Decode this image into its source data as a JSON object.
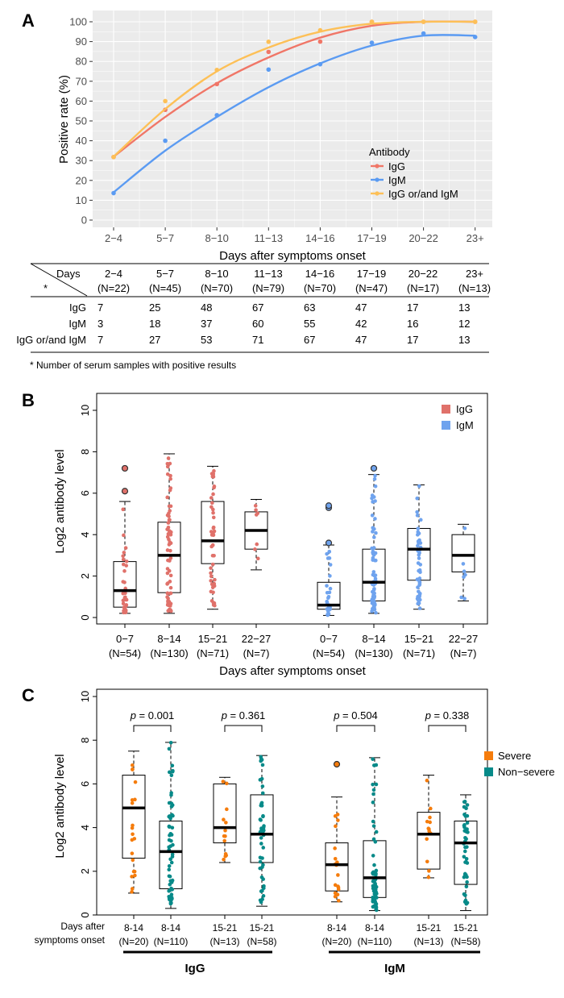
{
  "panel_a": {
    "letter": "A",
    "chart_data": {
      "type": "line",
      "xlabel": "Days after symptoms onset",
      "ylabel": "Positive rate (%)",
      "categories": [
        "2−4",
        "5−7",
        "8−10",
        "11−13",
        "14−16",
        "17−19",
        "20−22",
        "23+"
      ],
      "ylim": [
        0,
        100
      ],
      "yticks": [
        0,
        10,
        20,
        30,
        40,
        50,
        60,
        70,
        80,
        90,
        100
      ],
      "grid": true,
      "legend": {
        "title": "Antibody",
        "position": "inside-bottom-right"
      },
      "series": [
        {
          "name": "IgG",
          "color": "#F07667",
          "points": [
            31.8,
            55.6,
            68.6,
            84.8,
            90.0,
            100,
            100,
            100
          ],
          "fit": [
            32,
            52,
            69,
            82,
            92,
            98,
            100,
            100
          ]
        },
        {
          "name": "IgM",
          "color": "#5B9BF2",
          "points": [
            13.6,
            40.0,
            52.9,
            75.9,
            78.6,
            89.4,
            94.1,
            92.3
          ],
          "fit": [
            14,
            35,
            52,
            67,
            79,
            88,
            93,
            93
          ]
        },
        {
          "name": "IgG or/and IgM",
          "color": "#FDC057",
          "points": [
            31.8,
            60.0,
            75.7,
            89.9,
            95.7,
            100,
            100,
            100
          ],
          "fit": [
            32,
            56,
            75,
            87,
            95,
            99,
            100,
            100
          ]
        }
      ]
    },
    "table": {
      "corner_top": "Days",
      "corner_bottom": "*",
      "columns": [
        {
          "days": "2−4",
          "n": "(N=22)"
        },
        {
          "days": "5−7",
          "n": "(N=45)"
        },
        {
          "days": "8−10",
          "n": "(N=70)"
        },
        {
          "days": "11−13",
          "n": "(N=79)"
        },
        {
          "days": "14−16",
          "n": "(N=70)"
        },
        {
          "days": "17−19",
          "n": "(N=47)"
        },
        {
          "days": "20−22",
          "n": "(N=17)"
        },
        {
          "days": "23+",
          "n": "(N=13)"
        }
      ],
      "rows": [
        {
          "label": "IgG",
          "values": [
            "7",
            "25",
            "48",
            "67",
            "63",
            "47",
            "17",
            "13"
          ]
        },
        {
          "label": "IgM",
          "values": [
            "3",
            "18",
            "37",
            "60",
            "55",
            "42",
            "16",
            "12"
          ]
        },
        {
          "label": "IgG or/and IgM",
          "values": [
            "7",
            "27",
            "53",
            "71",
            "67",
            "47",
            "17",
            "13"
          ]
        }
      ],
      "footnote": "* Number of serum samples with positive results"
    }
  },
  "panel_b": {
    "letter": "B",
    "chart_data": {
      "type": "box",
      "ylabel": "Log2 antibody level",
      "xlabel": "Days after symptoms onset",
      "ylim": [
        0,
        10
      ],
      "yticks": [
        0,
        2,
        4,
        6,
        8,
        10
      ],
      "legend": [
        {
          "name": "IgG",
          "color": "#E0716A"
        },
        {
          "name": "IgM",
          "color": "#6FA3EE"
        }
      ],
      "groups": [
        {
          "label": "0−7",
          "n": "(N=54)",
          "series": "IgG",
          "q1": 0.5,
          "median": 1.3,
          "q3": 2.7,
          "min": 0.2,
          "max": 5.6,
          "outliers": [
            6.1,
            7.2
          ]
        },
        {
          "label": "8−14",
          "n": "(N=130)",
          "series": "IgG",
          "q1": 1.2,
          "median": 3.0,
          "q3": 4.6,
          "min": 0.2,
          "max": 7.9,
          "outliers": []
        },
        {
          "label": "15−21",
          "n": "(N=71)",
          "series": "IgG",
          "q1": 2.6,
          "median": 3.7,
          "q3": 5.6,
          "min": 0.4,
          "max": 7.3,
          "outliers": []
        },
        {
          "label": "22−27",
          "n": "(N=7)",
          "series": "IgG",
          "q1": 3.3,
          "median": 4.2,
          "q3": 5.1,
          "min": 2.3,
          "max": 5.7,
          "outliers": []
        },
        {
          "label": "0−7",
          "n": "(N=54)",
          "series": "IgM",
          "q1": 0.4,
          "median": 0.6,
          "q3": 1.7,
          "min": 0.1,
          "max": 3.5,
          "outliers": [
            3.6,
            5.3,
            5.4
          ]
        },
        {
          "label": "8−14",
          "n": "(N=130)",
          "series": "IgM",
          "q1": 0.8,
          "median": 1.7,
          "q3": 3.3,
          "min": 0.2,
          "max": 6.9,
          "outliers": [
            7.2
          ]
        },
        {
          "label": "15−21",
          "n": "(N=71)",
          "series": "IgM",
          "q1": 1.8,
          "median": 3.3,
          "q3": 4.3,
          "min": 0.4,
          "max": 6.4,
          "outliers": []
        },
        {
          "label": "22−27",
          "n": "(N=7)",
          "series": "IgM",
          "q1": 2.2,
          "median": 3.0,
          "q3": 4.0,
          "min": 0.8,
          "max": 4.5,
          "outliers": []
        }
      ]
    }
  },
  "panel_c": {
    "letter": "C",
    "chart_data": {
      "type": "box",
      "ylabel": "Log2 antibody level",
      "xlabel_lines": [
        "Days after",
        "symptoms onset"
      ],
      "ylim": [
        0,
        10
      ],
      "yticks": [
        0,
        2,
        4,
        6,
        8,
        10
      ],
      "legend": [
        {
          "name": "Severe",
          "color": "#F57C0C"
        },
        {
          "name": "Non−severe",
          "color": "#078A89"
        }
      ],
      "pvalues": [
        {
          "p": "p",
          "rest": " = 0.001"
        },
        {
          "p": "p",
          "rest": " = 0.361"
        },
        {
          "p": "p",
          "rest": " = 0.504"
        },
        {
          "p": "p",
          "rest": " = 0.338"
        }
      ],
      "group_labels": [
        "IgG",
        "IgM"
      ],
      "groups": [
        {
          "label": "8-14",
          "n": "(N=20)",
          "series": "Severe",
          "q1": 2.6,
          "median": 4.9,
          "q3": 6.4,
          "min": 1.0,
          "max": 7.5,
          "outliers": []
        },
        {
          "label": "8-14",
          "n": "(N=110)",
          "series": "Non−severe",
          "q1": 1.2,
          "median": 2.9,
          "q3": 4.3,
          "min": 0.3,
          "max": 7.9,
          "outliers": []
        },
        {
          "label": "15-21",
          "n": "(N=13)",
          "series": "Severe",
          "q1": 3.3,
          "median": 4.0,
          "q3": 6.0,
          "min": 2.4,
          "max": 6.3,
          "outliers": []
        },
        {
          "label": "15-21",
          "n": "(N=58)",
          "series": "Non−severe",
          "q1": 2.4,
          "median": 3.7,
          "q3": 5.5,
          "min": 0.4,
          "max": 7.3,
          "outliers": []
        },
        {
          "label": "8-14",
          "n": "(N=20)",
          "series": "Severe",
          "q1": 1.1,
          "median": 2.3,
          "q3": 3.3,
          "min": 0.6,
          "max": 5.4,
          "outliers": [
            6.9
          ]
        },
        {
          "label": "8-14",
          "n": "(N=110)",
          "series": "Non−severe",
          "q1": 0.8,
          "median": 1.7,
          "q3": 3.4,
          "min": 0.2,
          "max": 7.2,
          "outliers": []
        },
        {
          "label": "15-21",
          "n": "(N=13)",
          "series": "Severe",
          "q1": 2.1,
          "median": 3.7,
          "q3": 4.7,
          "min": 1.7,
          "max": 6.4,
          "outliers": []
        },
        {
          "label": "15-21",
          "n": "(N=58)",
          "series": "Non−severe",
          "q1": 1.4,
          "median": 3.3,
          "q3": 4.3,
          "min": 0.2,
          "max": 5.5,
          "outliers": []
        }
      ]
    }
  }
}
